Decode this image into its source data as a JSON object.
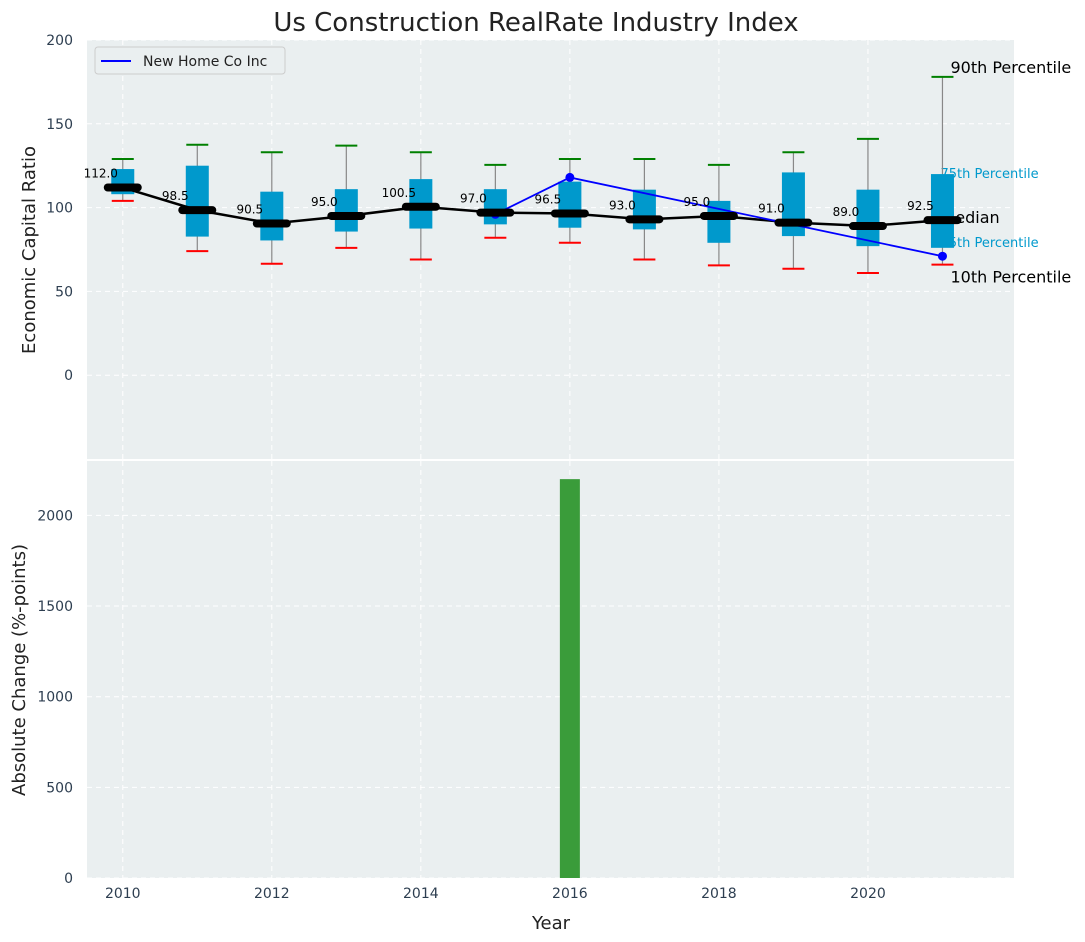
{
  "chart_data": [
    {
      "type": "box",
      "title": "Us Construction RealRate Industry Index",
      "xlabel": "",
      "ylabel": "Economic Capital Ratio",
      "xlim": [
        2009.52,
        2021.96
      ],
      "ylim": [
        -50,
        200
      ],
      "yticks": [
        0,
        50,
        100,
        150,
        200
      ],
      "grid": true,
      "legend": {
        "placement": "top-left",
        "entries": [
          "New Home Co Inc"
        ]
      },
      "years": [
        2010,
        2011,
        2012,
        2013,
        2014,
        2015,
        2016,
        2017,
        2018,
        2019,
        2020,
        2021
      ],
      "median": [
        112.0,
        98.5,
        90.5,
        95.0,
        100.5,
        97.0,
        96.5,
        93.0,
        95.0,
        91.0,
        89.0,
        92.5
      ],
      "median_labels": [
        "112.0",
        "98.5",
        "90.5",
        "95.0",
        "100.5",
        "97.0",
        "96.5",
        "93.0",
        "95.0",
        "91.0",
        "89.0",
        "92.5"
      ],
      "p25": [
        108,
        82.7,
        80.4,
        85.7,
        87.5,
        90,
        88,
        87,
        79,
        83,
        77,
        76
      ],
      "p75": [
        123,
        125,
        109.5,
        111,
        117,
        111,
        115.5,
        110.7,
        104,
        121,
        110.7,
        120
      ],
      "p10": [
        104,
        74,
        66.5,
        76,
        69,
        82,
        79,
        69,
        65.5,
        63.5,
        61,
        66
      ],
      "p90": [
        129,
        137.5,
        133,
        137,
        133,
        125.5,
        129,
        129,
        125.5,
        133,
        141,
        178
      ],
      "company_series": {
        "name": "New Home Co Inc",
        "x": [
          2015,
          2016,
          2021
        ],
        "y": [
          96,
          118,
          71
        ],
        "color": "#0000ff"
      },
      "annotations": [
        "90th Percentile",
        "75th Percentile",
        "Median",
        "25th Percentile",
        "10th Percentile"
      ],
      "colors": {
        "box": "#0099cc",
        "p90": "#008000",
        "p10": "#ff0000",
        "median": "#000000",
        "background": "#eaeff0"
      }
    },
    {
      "type": "bar",
      "xlabel": "Year",
      "ylabel": "Absolute Change (%-points)",
      "ylim": [
        0,
        2300
      ],
      "yticks": [
        0,
        500,
        1000,
        1500,
        2000
      ],
      "xticks": [
        2010,
        2012,
        2014,
        2016,
        2018,
        2020
      ],
      "categories": [
        2010,
        2011,
        2012,
        2013,
        2014,
        2015,
        2016,
        2017,
        2018,
        2019,
        2020,
        2021
      ],
      "values": [
        0,
        0,
        0,
        0,
        0,
        0,
        2200,
        0,
        0,
        0,
        0,
        0
      ],
      "color": "#3a9c3a"
    }
  ]
}
